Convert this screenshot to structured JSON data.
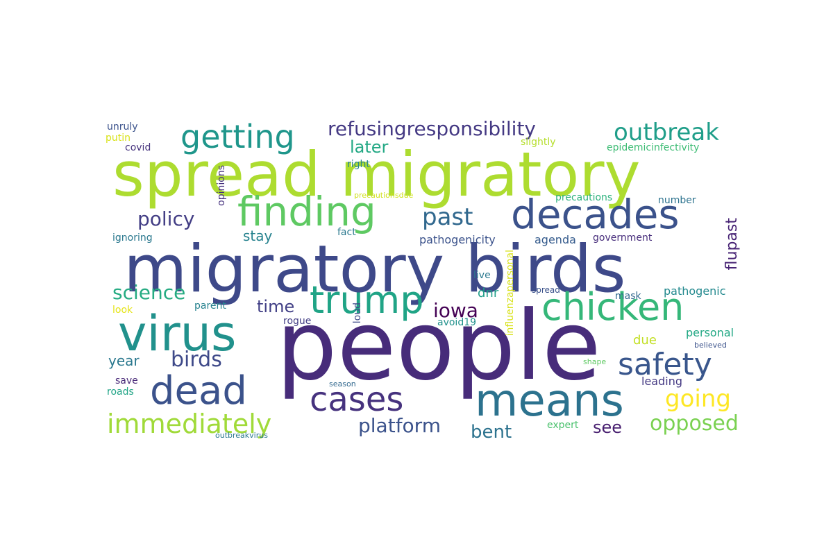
{
  "words": [
    {
      "text": "people",
      "color": "#472c7a"
    },
    {
      "text": "migratory birds",
      "color": "#3e4989"
    },
    {
      "text": "spread migratory",
      "color": "#addc30"
    },
    {
      "text": "virus",
      "color": "#21918c"
    },
    {
      "text": "means",
      "color": "#2c728e"
    },
    {
      "text": "finding",
      "color": "#5ec962"
    },
    {
      "text": "decades",
      "color": "#3b528b"
    },
    {
      "text": "chicken",
      "color": "#35b779"
    },
    {
      "text": "dead",
      "color": "#3b528b"
    },
    {
      "text": "trump",
      "color": "#20a486"
    },
    {
      "text": "cases",
      "color": "#46327e"
    },
    {
      "text": "getting",
      "color": "#1f968b"
    },
    {
      "text": "safety",
      "color": "#39568c"
    },
    {
      "text": "immediately",
      "color": "#a0da39"
    },
    {
      "text": "refusingresponsibility",
      "color": "#443983"
    },
    {
      "text": "outbreak",
      "color": "#1f9e89"
    },
    {
      "text": "going",
      "color": "#fde725"
    },
    {
      "text": "opposed",
      "color": "#7ad151"
    },
    {
      "text": "platform",
      "color": "#3b528b"
    },
    {
      "text": "past",
      "color": "#31688e"
    },
    {
      "text": "birds",
      "color": "#3e4989"
    },
    {
      "text": "policy",
      "color": "#433e85"
    },
    {
      "text": "science",
      "color": "#25ab82"
    },
    {
      "text": "iowa",
      "color": "#440154"
    },
    {
      "text": "bent",
      "color": "#2c728e"
    },
    {
      "text": "time",
      "color": "#424086"
    },
    {
      "text": "later",
      "color": "#22a884"
    },
    {
      "text": "see",
      "color": "#481f70"
    },
    {
      "text": "year",
      "color": "#2a788e"
    },
    {
      "text": "stay",
      "color": "#26828e"
    },
    {
      "text": "flupast",
      "color": "#482475"
    },
    {
      "text": "dnr",
      "color": "#1f9e89"
    },
    {
      "text": "due",
      "color": "#c2df23"
    },
    {
      "text": "personal",
      "color": "#22a884"
    },
    {
      "text": "leading",
      "color": "#443983"
    },
    {
      "text": "pathogenicity",
      "color": "#3b528b"
    },
    {
      "text": "agenda",
      "color": "#365c8d"
    },
    {
      "text": "government",
      "color": "#472d7b"
    },
    {
      "text": "pathogenic",
      "color": "#23898e"
    },
    {
      "text": "precautions",
      "color": "#2db27d"
    },
    {
      "text": "number",
      "color": "#2c728e"
    },
    {
      "text": "epidemicinfectivity",
      "color": "#3dbc74"
    },
    {
      "text": "slightly",
      "color": "#b5de2b"
    },
    {
      "text": "unruly",
      "color": "#3b528b"
    },
    {
      "text": "putin",
      "color": "#d8e219"
    },
    {
      "text": "covid",
      "color": "#46337e"
    },
    {
      "text": "ignoring",
      "color": "#2a788e"
    },
    {
      "text": "save",
      "color": "#482878"
    },
    {
      "text": "roads",
      "color": "#20a486"
    },
    {
      "text": "look",
      "color": "#e5e419"
    },
    {
      "text": "parent",
      "color": "#26828e"
    },
    {
      "text": "rogue",
      "color": "#433e85"
    },
    {
      "text": "avoid19",
      "color": "#21918c"
    },
    {
      "text": "fact",
      "color": "#2a788e"
    },
    {
      "text": "right",
      "color": "#25858e"
    },
    {
      "text": "live",
      "color": "#2a788e"
    },
    {
      "text": "mask",
      "color": "#31688e"
    },
    {
      "text": "spread",
      "color": "#3b528b"
    },
    {
      "text": "expert",
      "color": "#4ac16d"
    },
    {
      "text": "shape",
      "color": "#5ec962"
    },
    {
      "text": "believed",
      "color": "#3b528b"
    },
    {
      "text": "season",
      "color": "#31688e"
    },
    {
      "text": "outbreakvirus",
      "color": "#2a788e"
    },
    {
      "text": "precautionsdue",
      "color": "#d0e11c"
    },
    {
      "text": "opinions",
      "color": "#46327e"
    },
    {
      "text": "loud",
      "color": "#3e4989"
    },
    {
      "text": "influenzapersonal",
      "color": "#d8e219"
    }
  ]
}
